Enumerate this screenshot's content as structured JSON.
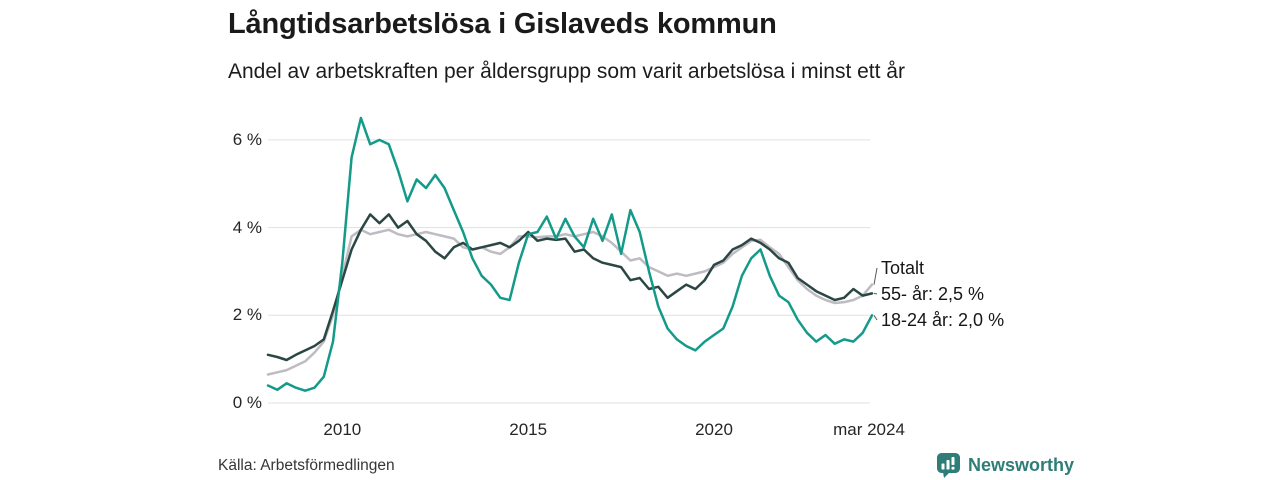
{
  "header": {
    "title": "Långtidsarbetslösa i Gislaveds kommun",
    "subtitle": "Andel av arbetskraften per åldersgrupp som varit arbetslösa i minst ett år"
  },
  "footer": {
    "source": "Källa: Arbetsförmedlingen",
    "brand_name": "Newsworthy"
  },
  "colors": {
    "gridline": "#e1e1e1",
    "leader_line": "#5a5a5a",
    "brand_teal": "#2e7d78",
    "series_totalt": "#bfbbc3",
    "series_55": "#2b4744",
    "series_1824": "#149a89"
  },
  "chart_data": {
    "type": "line",
    "title": "Långtidsarbetslösa i Gislaveds kommun",
    "subtitle": "Andel av arbetskraften per åldersgrupp som varit arbetslösa i minst ett år",
    "unit": "% av arbetskraften",
    "x_start": 2008,
    "x_step": 0.25,
    "x_end": 2024.25,
    "ylim": [
      0,
      6.6
    ],
    "grid": true,
    "legend_position": "right-annotations",
    "yticks": [
      {
        "value": 0,
        "label": "0 %"
      },
      {
        "value": 2,
        "label": "2 %"
      },
      {
        "value": 4,
        "label": "4 %"
      },
      {
        "value": 6,
        "label": "6 %"
      }
    ],
    "xticks": [
      {
        "value": 2010,
        "label": "2010"
      },
      {
        "value": 2015,
        "label": "2015"
      },
      {
        "value": 2020,
        "label": "2020"
      },
      {
        "value": 2024.17,
        "label": "mar 2024"
      }
    ],
    "series": [
      {
        "name": "Totalt",
        "label_text": "Totalt",
        "color": "#bfbbc3",
        "end_value": 2.7,
        "values": [
          0.65,
          0.7,
          0.75,
          0.85,
          0.95,
          1.15,
          1.4,
          2.0,
          2.9,
          3.8,
          3.95,
          3.85,
          3.9,
          3.95,
          3.85,
          3.8,
          3.85,
          3.9,
          3.85,
          3.8,
          3.75,
          3.55,
          3.5,
          3.55,
          3.45,
          3.4,
          3.55,
          3.8,
          3.8,
          3.78,
          3.8,
          3.8,
          3.85,
          3.8,
          3.85,
          3.9,
          3.8,
          3.65,
          3.45,
          3.25,
          3.3,
          3.1,
          3.0,
          2.9,
          2.95,
          2.9,
          2.95,
          3.0,
          3.1,
          3.2,
          3.4,
          3.55,
          3.7,
          3.72,
          3.55,
          3.4,
          3.1,
          2.8,
          2.6,
          2.45,
          2.35,
          2.28,
          2.3,
          2.35,
          2.45,
          2.7
        ]
      },
      {
        "name": "55- år",
        "label_text": "55- år: 2,5 %",
        "color": "#2b4744",
        "end_value": 2.5,
        "values": [
          1.1,
          1.05,
          0.98,
          1.1,
          1.2,
          1.3,
          1.45,
          2.1,
          2.8,
          3.5,
          3.95,
          4.3,
          4.1,
          4.3,
          4.0,
          4.15,
          3.85,
          3.7,
          3.45,
          3.3,
          3.55,
          3.65,
          3.5,
          3.55,
          3.6,
          3.65,
          3.55,
          3.7,
          3.9,
          3.7,
          3.75,
          3.72,
          3.75,
          3.45,
          3.5,
          3.3,
          3.2,
          3.15,
          3.1,
          2.8,
          2.85,
          2.6,
          2.65,
          2.4,
          2.55,
          2.7,
          2.6,
          2.8,
          3.15,
          3.25,
          3.5,
          3.6,
          3.75,
          3.65,
          3.5,
          3.3,
          3.2,
          2.85,
          2.7,
          2.55,
          2.45,
          2.35,
          2.4,
          2.6,
          2.45,
          2.5
        ]
      },
      {
        "name": "18-24 år",
        "label_text": "18-24 år: 2,0 %",
        "color": "#149a89",
        "end_value": 2.0,
        "values": [
          0.4,
          0.3,
          0.45,
          0.35,
          0.28,
          0.35,
          0.6,
          1.4,
          3.2,
          5.6,
          6.5,
          5.9,
          6.0,
          5.9,
          5.3,
          4.6,
          5.1,
          4.9,
          5.2,
          4.9,
          4.4,
          3.9,
          3.3,
          2.9,
          2.7,
          2.4,
          2.35,
          3.2,
          3.85,
          3.9,
          4.25,
          3.75,
          4.2,
          3.8,
          3.55,
          4.2,
          3.7,
          4.3,
          3.4,
          4.4,
          3.9,
          3.0,
          2.2,
          1.7,
          1.45,
          1.3,
          1.2,
          1.4,
          1.55,
          1.7,
          2.2,
          2.9,
          3.3,
          3.5,
          2.9,
          2.45,
          2.3,
          1.9,
          1.6,
          1.4,
          1.55,
          1.35,
          1.45,
          1.4,
          1.6,
          2.0
        ]
      }
    ]
  }
}
